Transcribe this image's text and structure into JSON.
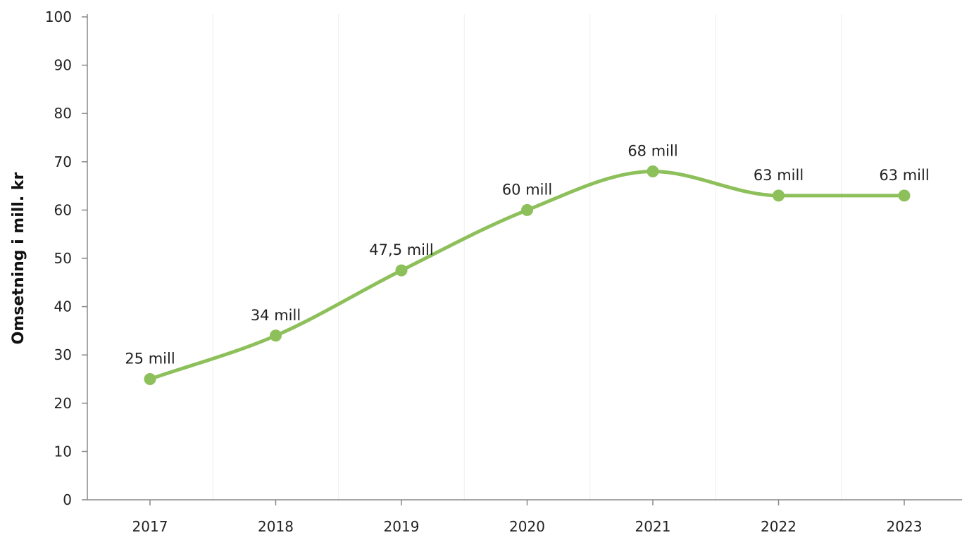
{
  "chart_data": {
    "type": "line",
    "title": "",
    "xlabel": "",
    "ylabel": "Omsetning i mill. kr",
    "categories": [
      "2017",
      "2018",
      "2019",
      "2020",
      "2021",
      "2022",
      "2023"
    ],
    "series": [
      {
        "values": [
          25,
          34,
          47.5,
          60,
          68,
          63,
          63
        ],
        "labels": [
          "25 mill",
          "34 mill",
          "47,5 mill",
          "60 mill",
          "68 mill",
          "63 mill",
          "63 mill"
        ],
        "color": "#8dc05a"
      }
    ],
    "ylim": [
      0,
      100
    ],
    "yticks": [
      "0",
      "10",
      "20",
      "30",
      "40",
      "50",
      "60",
      "70",
      "80",
      "90",
      "100"
    ],
    "grid": "vertical",
    "smooth": true,
    "legend": "none"
  }
}
